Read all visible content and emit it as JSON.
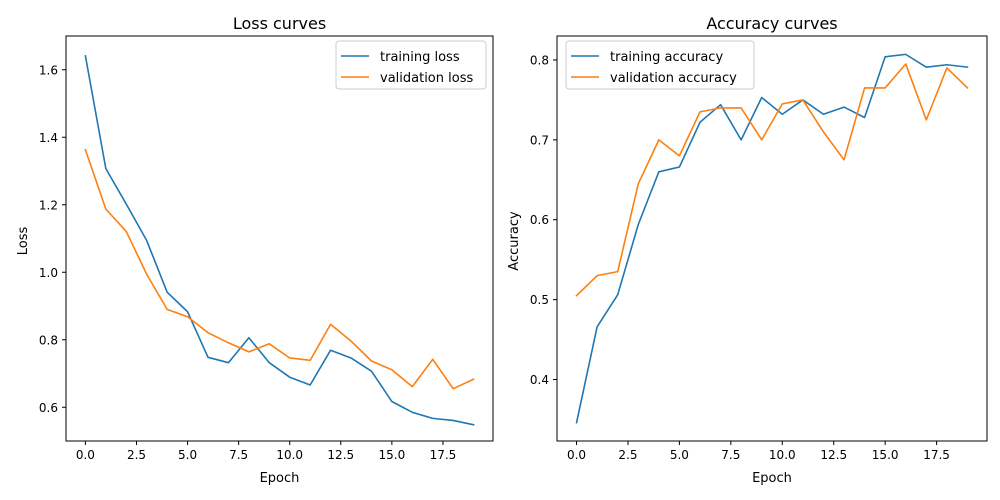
{
  "chart_data": [
    {
      "type": "line",
      "title": "Loss curves",
      "xlabel": "Epoch",
      "ylabel": "Loss",
      "x": [
        0,
        1,
        2,
        3,
        4,
        5,
        6,
        7,
        8,
        9,
        10,
        11,
        12,
        13,
        14,
        15,
        16,
        17,
        18,
        19
      ],
      "xlim": [
        -0.95,
        19.95
      ],
      "ylim": [
        0.5,
        1.7
      ],
      "xticks": [
        0.0,
        2.5,
        5.0,
        7.5,
        10.0,
        12.5,
        15.0,
        17.5
      ],
      "xtick_labels": [
        "0.0",
        "2.5",
        "5.0",
        "7.5",
        "10.0",
        "12.5",
        "15.0",
        "17.5"
      ],
      "yticks": [
        0.6,
        0.8,
        1.0,
        1.2,
        1.4,
        1.6
      ],
      "ytick_labels": [
        "0.6",
        "0.8",
        "1.0",
        "1.2",
        "1.4",
        "1.6"
      ],
      "grid": false,
      "legend": "top-right",
      "series": [
        {
          "name": "training loss",
          "color": "#1f77b4",
          "values": [
            1.641,
            1.307,
            1.202,
            1.094,
            0.941,
            0.883,
            0.748,
            0.732,
            0.806,
            0.732,
            0.689,
            0.666,
            0.769,
            0.746,
            0.707,
            0.617,
            0.585,
            0.567,
            0.561,
            0.548
          ]
        },
        {
          "name": "validation loss",
          "color": "#ff7f0e",
          "values": [
            1.363,
            1.187,
            1.121,
            0.994,
            0.89,
            0.868,
            0.821,
            0.791,
            0.764,
            0.788,
            0.746,
            0.739,
            0.846,
            0.796,
            0.737,
            0.711,
            0.661,
            0.742,
            0.655,
            0.683
          ]
        }
      ]
    },
    {
      "type": "line",
      "title": "Accuracy curves",
      "xlabel": "Epoch",
      "ylabel": "Accuracy",
      "x": [
        0,
        1,
        2,
        3,
        4,
        5,
        6,
        7,
        8,
        9,
        10,
        11,
        12,
        13,
        14,
        15,
        16,
        17,
        18,
        19
      ],
      "xlim": [
        -0.95,
        19.95
      ],
      "ylim": [
        0.323,
        0.83
      ],
      "xticks": [
        0.0,
        2.5,
        5.0,
        7.5,
        10.0,
        12.5,
        15.0,
        17.5
      ],
      "xtick_labels": [
        "0.0",
        "2.5",
        "5.0",
        "7.5",
        "10.0",
        "12.5",
        "15.0",
        "17.5"
      ],
      "yticks": [
        0.4,
        0.5,
        0.6,
        0.7,
        0.8
      ],
      "ytick_labels": [
        "0.4",
        "0.5",
        "0.6",
        "0.7",
        "0.8"
      ],
      "grid": false,
      "legend": "top-left",
      "series": [
        {
          "name": "training accuracy",
          "color": "#1f77b4",
          "values": [
            0.346,
            0.466,
            0.506,
            0.594,
            0.66,
            0.666,
            0.722,
            0.744,
            0.7,
            0.753,
            0.732,
            0.75,
            0.732,
            0.741,
            0.728,
            0.804,
            0.807,
            0.791,
            0.794,
            0.791
          ]
        },
        {
          "name": "validation accuracy",
          "color": "#ff7f0e",
          "values": [
            0.505,
            0.53,
            0.535,
            0.645,
            0.7,
            0.68,
            0.735,
            0.74,
            0.74,
            0.7,
            0.745,
            0.75,
            0.71,
            0.675,
            0.765,
            0.765,
            0.795,
            0.725,
            0.79,
            0.765
          ]
        }
      ]
    }
  ]
}
